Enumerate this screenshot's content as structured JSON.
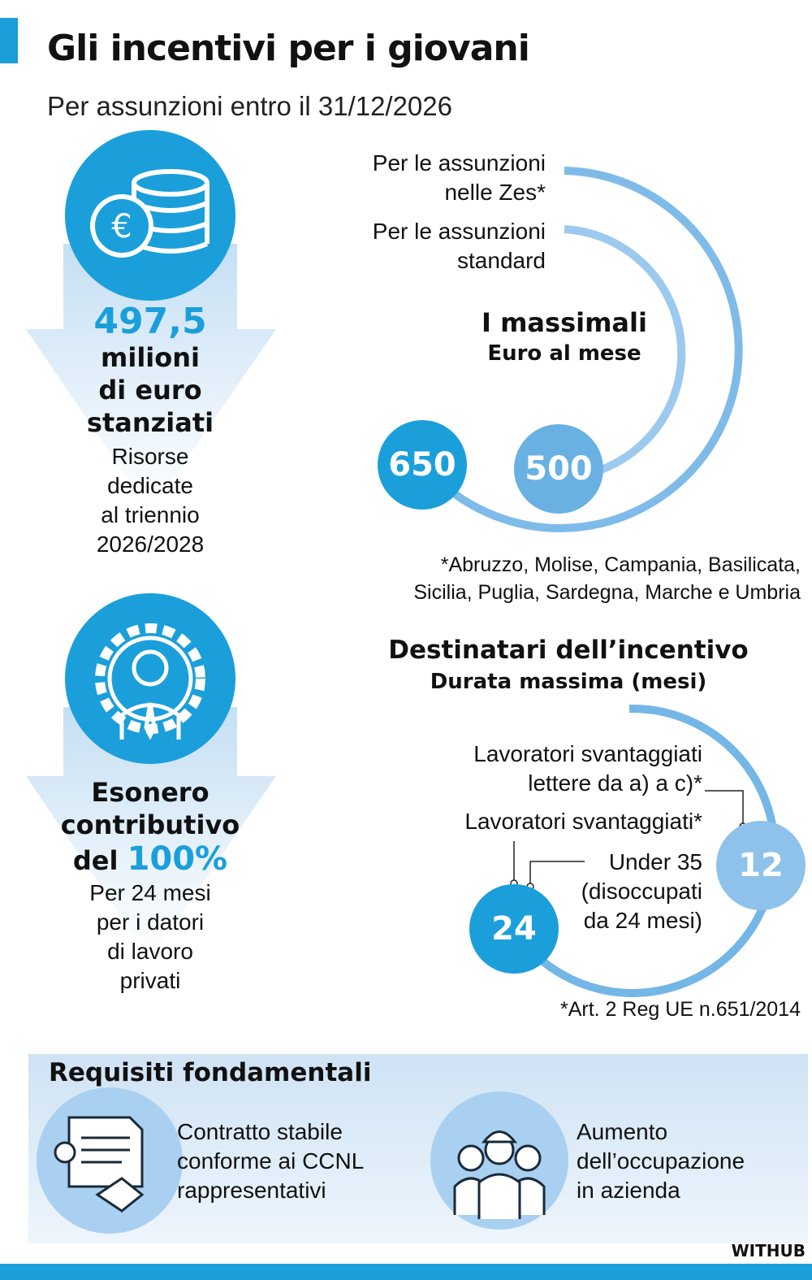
{
  "header": {
    "title": "Gli incentivi per i giovani",
    "subtitle": "Per assunzioni entro il 31/12/2026"
  },
  "colors": {
    "primary": "#1a9fdb",
    "secondary": "#69b1e3",
    "light": "#b4d6f2"
  },
  "funds": {
    "amount": "497,5",
    "line1": "milioni",
    "line2": "di euro",
    "line3": "stanziati",
    "desc": [
      "Risorse",
      "dedicate",
      "al triennio",
      "2026/2028"
    ],
    "icon": "coins-euro-icon"
  },
  "exemption": {
    "line1": "Esonero",
    "line2": "contributivo",
    "line3_prefix": "del",
    "percent": "100%",
    "desc": [
      "Per 24 mesi",
      "per i datori",
      "di lavoro",
      "privati"
    ],
    "icon": "gear-person-icon"
  },
  "massimali": {
    "title": "I massimali",
    "subtitle": "Euro al mese",
    "zes_label": [
      "Per le assunzioni",
      "nelle Zes*"
    ],
    "standard_label": [
      "Per le assunzioni",
      "standard"
    ],
    "zes_value": "650",
    "standard_value": "500",
    "footnote": [
      "*Abruzzo, Molise, Campania, Basilicata,",
      "Sicilia, Puglia, Sardegna, Marche e Umbria"
    ]
  },
  "destinatari": {
    "title": "Destinatari dell’incentivo",
    "subtitle": "Durata massima (mesi)",
    "label_ac": [
      "Lavoratori svantaggiati",
      "lettere da a) a c)*"
    ],
    "label_sv": "Lavoratori svantaggiati*",
    "label_u35": [
      "Under 35",
      "(disoccupati",
      "da 24 mesi)"
    ],
    "value_12": "12",
    "value_24": "24",
    "footnote": "*Art. 2 Reg UE n.651/2014"
  },
  "requisiti": {
    "title": "Requisiti fondamentali",
    "item1": [
      "Contratto stabile",
      "conforme ai CCNL",
      "rappresentativi"
    ],
    "item2": [
      "Aumento",
      "dell’occupazione",
      "in azienda"
    ]
  },
  "brand": "WITHUB"
}
